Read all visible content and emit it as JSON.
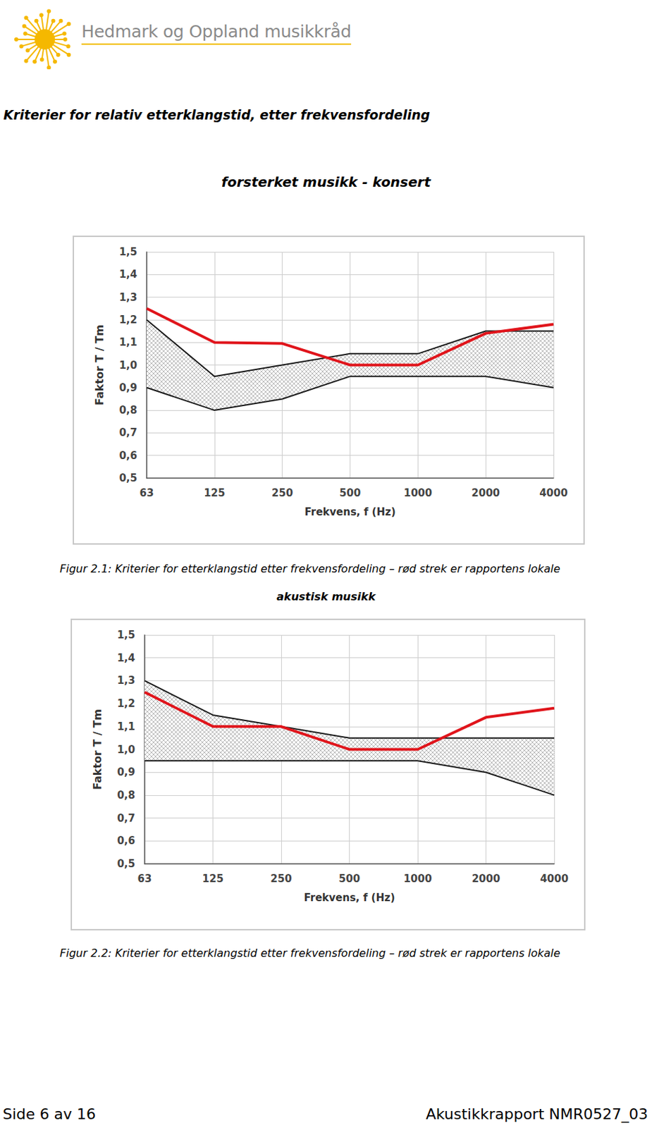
{
  "header": {
    "org": "Hedmark og Oppland musikkråd"
  },
  "heading": "Kriterier for relativ etterklangstid, etter frekvensfordeling",
  "chart_data": [
    {
      "type": "line",
      "title": "forsterket musikk - konsert",
      "caption": "Figur 2.1: Kriterier for etterklangstid etter frekvensfordeling – rød strek er rapportens lokale",
      "x_label": "Frekvens, f (Hz)",
      "y_label": "Faktor T / Tm",
      "categories": [
        "63",
        "125",
        "250",
        "500",
        "1000",
        "2000",
        "4000"
      ],
      "values": [
        1.25,
        1.1,
        1.095,
        1.0,
        1.0,
        1.14,
        1.18
      ],
      "color": "#e0141b",
      "band_upper": [
        1.2,
        0.95,
        1.0,
        1.05,
        1.05,
        1.15,
        1.15
      ],
      "band_lower": [
        0.9,
        0.8,
        0.85,
        0.95,
        0.95,
        0.95,
        0.9
      ],
      "ylim": [
        0.5,
        1.5
      ],
      "yticks": [
        {
          "value": 0.5,
          "label": "0,5"
        },
        {
          "value": 0.6,
          "label": "0,6"
        },
        {
          "value": 0.7,
          "label": "0,7"
        },
        {
          "value": 0.8,
          "label": "0,8"
        },
        {
          "value": 0.9,
          "label": "0,9"
        },
        {
          "value": 1.0,
          "label": "1,0"
        },
        {
          "value": 1.1,
          "label": "1,1"
        },
        {
          "value": 1.2,
          "label": "1,2"
        },
        {
          "value": 1.3,
          "label": "1,3"
        },
        {
          "value": 1.4,
          "label": "1,4"
        },
        {
          "value": 1.5,
          "label": "1,5"
        }
      ],
      "grid": true
    },
    {
      "type": "line",
      "title": "akustisk musikk",
      "caption": "Figur 2.2: Kriterier for etterklangstid etter frekvensfordeling – rød strek er rapportens lokale",
      "x_label": "Frekvens, f (Hz)",
      "y_label": "Faktor T / Tm",
      "categories": [
        "63",
        "125",
        "250",
        "500",
        "1000",
        "2000",
        "4000"
      ],
      "values": [
        1.25,
        1.1,
        1.1,
        1.0,
        1.0,
        1.14,
        1.18
      ],
      "color": "#e0141b",
      "band_upper": [
        1.3,
        1.15,
        1.1,
        1.05,
        1.05,
        1.05,
        1.05
      ],
      "band_lower": [
        0.95,
        0.95,
        0.95,
        0.95,
        0.95,
        0.9,
        0.8
      ],
      "ylim": [
        0.5,
        1.5
      ],
      "yticks": [
        {
          "value": 0.5,
          "label": "0,5"
        },
        {
          "value": 0.6,
          "label": "0,6"
        },
        {
          "value": 0.7,
          "label": "0,7"
        },
        {
          "value": 0.8,
          "label": "0,8"
        },
        {
          "value": 0.9,
          "label": "0,9"
        },
        {
          "value": 1.0,
          "label": "1,0"
        },
        {
          "value": 1.1,
          "label": "1,1"
        },
        {
          "value": 1.2,
          "label": "1,2"
        },
        {
          "value": 1.3,
          "label": "1,3"
        },
        {
          "value": 1.4,
          "label": "1,4"
        },
        {
          "value": 1.5,
          "label": "1,5"
        }
      ],
      "grid": true
    }
  ],
  "footer": {
    "left": "Side 6 av 16",
    "right": "Akustikkrapport NMR0527_03"
  }
}
